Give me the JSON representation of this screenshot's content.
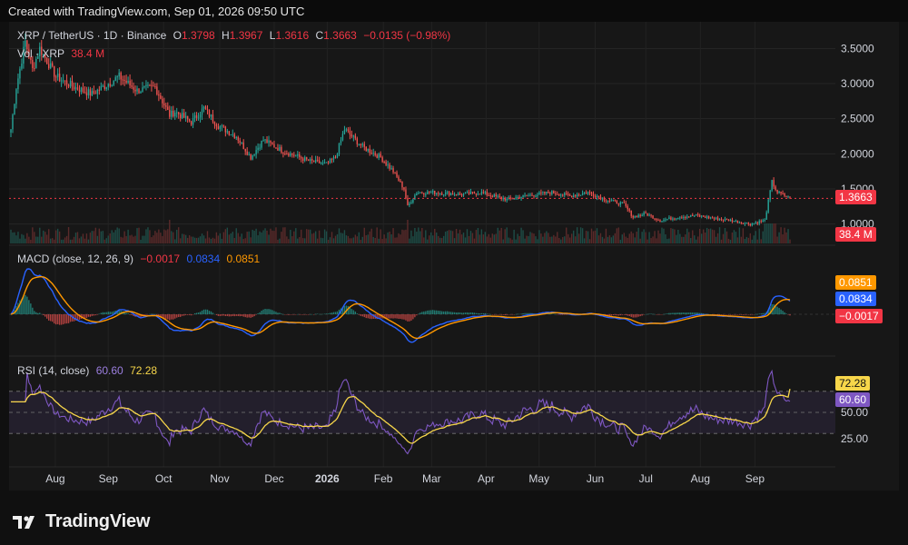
{
  "header": {
    "watermark": "Created with TradingView.com, Sep 01, 2026 09:50 UTC",
    "brand": "TradingView"
  },
  "legend": {
    "symbol": "XRP / TetherUS · 1D · Binance",
    "o_label": "O",
    "o": "1.3798",
    "h_label": "H",
    "h": "1.3967",
    "l_label": "L",
    "l": "1.3616",
    "c_label": "C",
    "c": "1.3663",
    "change": "−0.0135 (−0.98%)",
    "vol_label": "Vol · XRP",
    "vol": "38.4 M"
  },
  "macd_legend": {
    "label": "MACD (close, 12, 26, 9)",
    "hist": "−0.0017",
    "macd": "0.0834",
    "signal": "0.0851"
  },
  "rsi_legend": {
    "label": "RSI (14, close)",
    "rsi": "60.60",
    "ma": "72.28"
  },
  "price_tags": {
    "price": "1.3663",
    "volume": "38.4 M",
    "signal": "0.0851",
    "macd": "0.0834",
    "hist": "−0.0017",
    "rsi_ma": "72.28",
    "rsi": "60.60"
  },
  "colors": {
    "up": "#26a69a",
    "down": "#ef5350",
    "macd": "#2962ff",
    "signal": "#ff9800",
    "rsi": "#7e57c2",
    "rsi_ma": "#f7d64a",
    "background": "#171717"
  },
  "chart_data": [
    {
      "type": "candlestick",
      "symbol": "XRP / TetherUS",
      "interval": "1D",
      "exchange": "Binance",
      "x_tick_labels": [
        "Aug",
        "Sep",
        "Oct",
        "Nov",
        "Dec",
        "2026",
        "Feb",
        "Mar",
        "Apr",
        "May",
        "Jun",
        "Jul",
        "Aug",
        "Sep"
      ],
      "y_tick_labels": [
        "1.0000",
        "1.5000",
        "2.0000",
        "2.5000",
        "3.0000",
        "3.5000"
      ],
      "ylim": [
        0.75,
        3.75
      ],
      "anchors": [
        {
          "day": 0,
          "close": 2.35
        },
        {
          "day": 3,
          "close": 2.95
        },
        {
          "day": 8,
          "close": 3.6
        },
        {
          "day": 12,
          "close": 3.2
        },
        {
          "day": 16,
          "close": 3.5
        },
        {
          "day": 25,
          "close": 3.1
        },
        {
          "day": 35,
          "close": 2.95
        },
        {
          "day": 45,
          "close": 2.85
        },
        {
          "day": 60,
          "close": 3.1
        },
        {
          "day": 70,
          "close": 2.9
        },
        {
          "day": 80,
          "close": 2.95
        },
        {
          "day": 88,
          "close": 2.55
        },
        {
          "day": 91,
          "close": 2.6
        },
        {
          "day": 100,
          "close": 2.45
        },
        {
          "day": 107,
          "close": 2.65
        },
        {
          "day": 115,
          "close": 2.4
        },
        {
          "day": 125,
          "close": 2.25
        },
        {
          "day": 133,
          "close": 1.95
        },
        {
          "day": 140,
          "close": 2.2
        },
        {
          "day": 150,
          "close": 2.05
        },
        {
          "day": 165,
          "close": 1.9
        },
        {
          "day": 175,
          "close": 1.85
        },
        {
          "day": 180,
          "close": 1.95
        },
        {
          "day": 185,
          "close": 2.35
        },
        {
          "day": 195,
          "close": 2.1
        },
        {
          "day": 205,
          "close": 1.95
        },
        {
          "day": 212,
          "close": 1.75
        },
        {
          "day": 218,
          "close": 1.5
        },
        {
          "day": 220,
          "close": 1.25
        },
        {
          "day": 225,
          "close": 1.45
        },
        {
          "day": 235,
          "close": 1.45
        },
        {
          "day": 250,
          "close": 1.42
        },
        {
          "day": 260,
          "close": 1.45
        },
        {
          "day": 275,
          "close": 1.35
        },
        {
          "day": 285,
          "close": 1.4
        },
        {
          "day": 300,
          "close": 1.45
        },
        {
          "day": 310,
          "close": 1.4
        },
        {
          "day": 320,
          "close": 1.45
        },
        {
          "day": 330,
          "close": 1.35
        },
        {
          "day": 340,
          "close": 1.28
        },
        {
          "day": 345,
          "close": 1.1
        },
        {
          "day": 352,
          "close": 1.15
        },
        {
          "day": 360,
          "close": 1.05
        },
        {
          "day": 370,
          "close": 1.1
        },
        {
          "day": 380,
          "close": 1.12
        },
        {
          "day": 390,
          "close": 1.08
        },
        {
          "day": 400,
          "close": 1.05
        },
        {
          "day": 410,
          "close": 1.0
        },
        {
          "day": 418,
          "close": 1.05
        },
        {
          "day": 422,
          "close": 1.6
        },
        {
          "day": 425,
          "close": 1.45
        },
        {
          "day": 432,
          "close": 1.37
        }
      ],
      "last": {
        "open": 1.3798,
        "high": 1.3967,
        "low": 1.3616,
        "close": 1.3663
      },
      "volume_last": "38.4 M"
    },
    {
      "type": "line",
      "name": "MACD (close, 12, 26, 9)",
      "series": [
        {
          "name": "MACD",
          "last": 0.0834
        },
        {
          "name": "Signal",
          "last": 0.0851
        },
        {
          "name": "Histogram",
          "last": -0.0017
        }
      ]
    },
    {
      "type": "line",
      "name": "RSI (14, close)",
      "y_tick_labels": [
        "25.00",
        "50.00"
      ],
      "ylim": [
        0,
        100
      ],
      "bands": [
        30,
        70
      ],
      "series": [
        {
          "name": "RSI",
          "last": 60.6
        },
        {
          "name": "RSI MA",
          "last": 72.28
        }
      ]
    }
  ]
}
